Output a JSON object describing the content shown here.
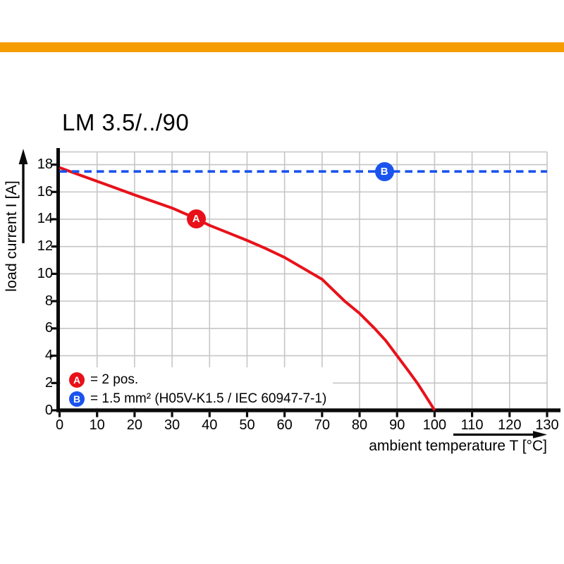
{
  "page": {
    "background_color": "#ffffff",
    "accent_bar_color": "#f59c00",
    "grid_color": "#c6c6c6",
    "axis_color": "#0a0a0a"
  },
  "title": "LM 3.5/../90",
  "legend": {
    "items": [
      {
        "badge": "A",
        "text": "= 2 pos."
      },
      {
        "badge": "B",
        "text": "= 1.5 mm² (H05V-K1.5 / IEC 60947-7-1)"
      }
    ]
  },
  "chart_data": {
    "type": "line",
    "title": "LM 3.5/../90",
    "xlabel": "ambient temperature T [°C]",
    "ylabel": "load current I [A]",
    "xlim": [
      0,
      130
    ],
    "ylim": [
      0,
      19
    ],
    "x_ticks": [
      0,
      10,
      20,
      30,
      40,
      50,
      60,
      70,
      80,
      90,
      100,
      110,
      120,
      130
    ],
    "y_ticks": [
      0,
      2,
      4,
      6,
      8,
      10,
      12,
      14,
      16,
      18
    ],
    "grid": true,
    "legend_position": "bottom-left-inside",
    "series": [
      {
        "name": "A",
        "legend_text": "= 2 pos.",
        "color": "#e8111a",
        "style": "solid",
        "marker": {
          "letter": "A",
          "t": 36.4,
          "i": 14.0
        },
        "points": [
          [
            0,
            17.78
          ],
          [
            5,
            17.28
          ],
          [
            10,
            16.78
          ],
          [
            15,
            16.28
          ],
          [
            20,
            15.78
          ],
          [
            25,
            15.3
          ],
          [
            30,
            14.82
          ],
          [
            35,
            14.22
          ],
          [
            40,
            13.55
          ],
          [
            45,
            13.0
          ],
          [
            50,
            12.45
          ],
          [
            55,
            11.85
          ],
          [
            60,
            11.2
          ],
          [
            65,
            10.4
          ],
          [
            70,
            9.6
          ],
          [
            76,
            8.0
          ],
          [
            80,
            7.1
          ],
          [
            84,
            6.0
          ],
          [
            87,
            5.1
          ],
          [
            90,
            4.0
          ],
          [
            93,
            2.9
          ],
          [
            95.5,
            1.95
          ],
          [
            97.5,
            1.1
          ],
          [
            99,
            0.45
          ],
          [
            100,
            0
          ]
        ]
      },
      {
        "name": "B",
        "legend_text": "= 1.5 mm² (H05V-K1.5 / IEC 60947-7-1)",
        "color": "#1a53ee",
        "style": "dashed",
        "marker": {
          "letter": "B",
          "t": 86.6,
          "i": 17.5
        },
        "points": [
          [
            0,
            17.5
          ],
          [
            130,
            17.5
          ]
        ]
      }
    ]
  }
}
